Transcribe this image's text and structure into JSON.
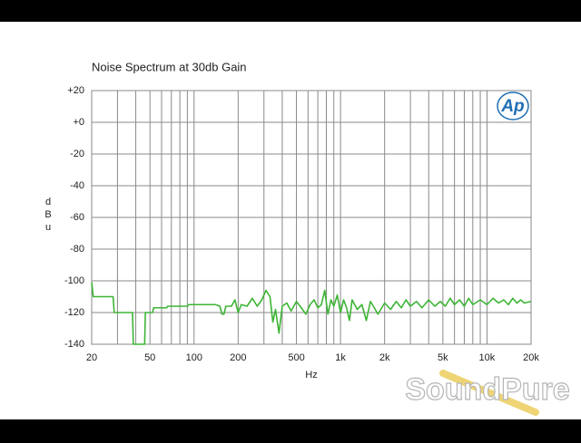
{
  "chart_data": {
    "type": "line",
    "title": "Noise Spectrum at 30db Gain",
    "x_label": "Hz",
    "y_label": "dBu",
    "logo": "Ap",
    "watermark": "SoundPure",
    "xscale": "log",
    "grid": true,
    "color": "#3db535",
    "xlim": [
      20,
      20000
    ],
    "xticks": [
      20,
      50,
      100,
      200,
      500,
      {
        "value": 1000,
        "label": "1k"
      },
      {
        "value": 2000,
        "label": "2k"
      },
      {
        "value": 5000,
        "label": "5k"
      },
      {
        "value": 10000,
        "label": "10k"
      },
      {
        "value": 20000,
        "label": "20k"
      }
    ],
    "x_minor_grid": [
      30,
      40,
      60,
      70,
      80,
      90,
      300,
      400,
      600,
      700,
      800,
      900,
      3000,
      4000,
      6000,
      7000,
      8000,
      9000
    ],
    "ylim": [
      -140,
      20
    ],
    "yticks": [
      -140,
      -120,
      -100,
      -80,
      -60,
      -40,
      -20,
      {
        "value": 0,
        "label": "+0"
      },
      {
        "value": 20,
        "label": "+20"
      }
    ],
    "x": [
      20,
      20.5,
      28,
      28.5,
      38,
      38.5,
      46,
      46.5,
      52,
      53,
      65,
      66,
      90,
      92,
      140,
      150,
      155,
      160,
      165,
      180,
      190,
      200,
      210,
      230,
      250,
      270,
      290,
      310,
      330,
      345,
      360,
      380,
      400,
      430,
      460,
      500,
      540,
      580,
      620,
      660,
      700,
      740,
      780,
      820,
      860,
      900,
      950,
      1000,
      1050,
      1100,
      1150,
      1200,
      1300,
      1400,
      1500,
      1600,
      1700,
      1800,
      2000,
      2200,
      2400,
      2600,
      2800,
      3000,
      3300,
      3600,
      4000,
      4400,
      4800,
      5200,
      5600,
      6000,
      6500,
      7000,
      7500,
      8000,
      9000,
      10000,
      11000,
      12000,
      13000,
      14000,
      15000,
      16000,
      17000,
      18000,
      20000
    ],
    "values": [
      -101,
      -110,
      -110,
      -120,
      -120,
      -140,
      -140,
      -120,
      -120,
      -117,
      -117,
      -116,
      -116,
      -115,
      -115,
      -116,
      -121,
      -121,
      -116,
      -116,
      -112,
      -120,
      -115,
      -116,
      -111,
      -116,
      -112,
      -106,
      -110,
      -126,
      -118,
      -133,
      -116,
      -114,
      -119,
      -113,
      -117,
      -121,
      -115,
      -112,
      -117,
      -115,
      -106,
      -121,
      -112,
      -116,
      -109,
      -120,
      -112,
      -117,
      -125,
      -112,
      -118,
      -115,
      -125,
      -113,
      -117,
      -121,
      -114,
      -118,
      -113,
      -117,
      -112,
      -116,
      -113,
      -117,
      -112,
      -116,
      -113,
      -116,
      -111,
      -115,
      -112,
      -116,
      -111,
      -115,
      -112,
      -115,
      -111,
      -114,
      -112,
      -115,
      -111,
      -114,
      -112,
      -114,
      -113
    ]
  }
}
